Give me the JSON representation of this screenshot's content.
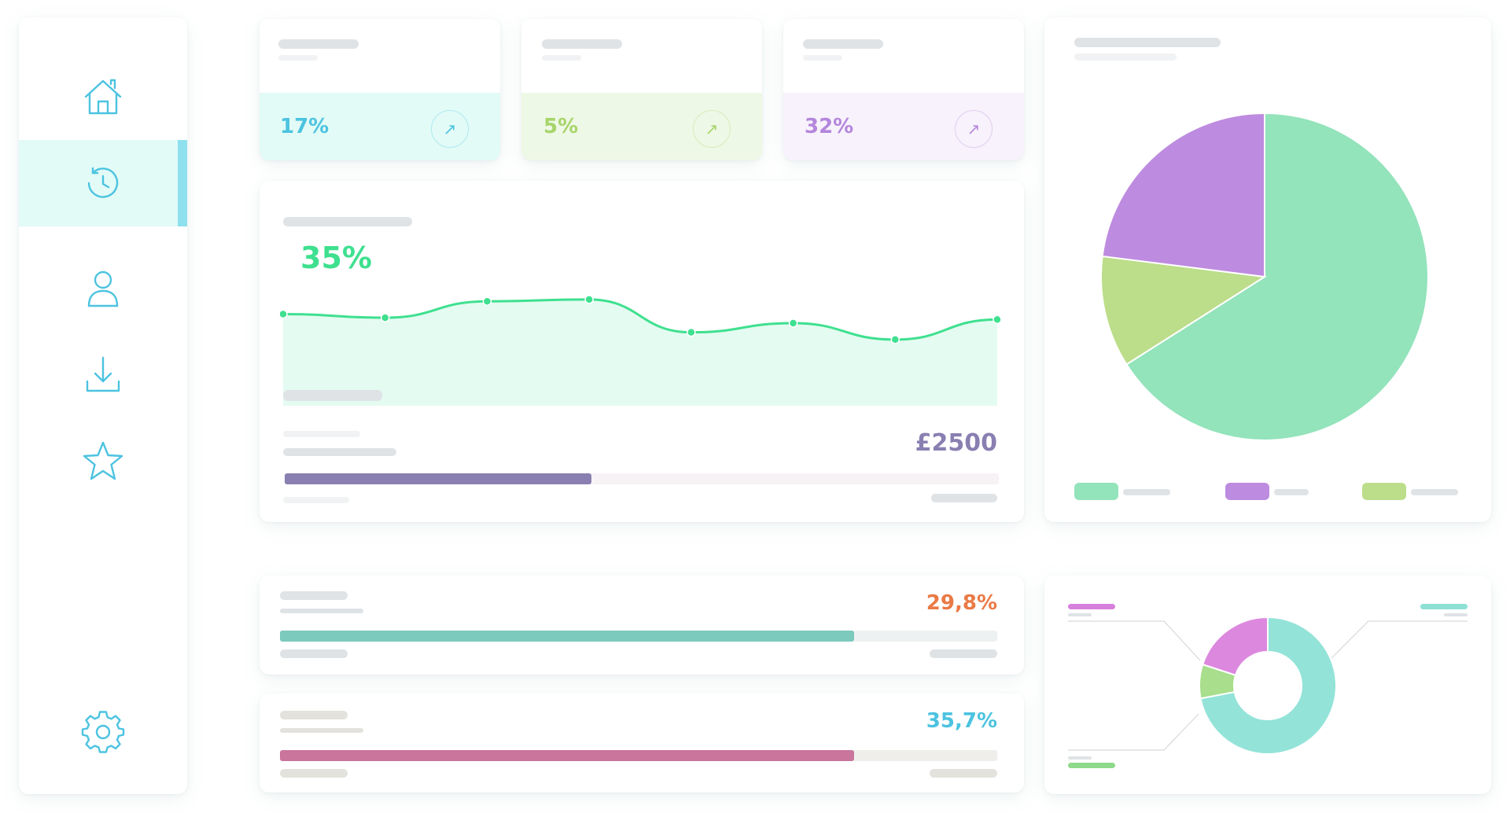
{
  "colors": {
    "accent_cyan": "#4cc3e0",
    "green": "#3ee08f",
    "lime": "#a7d56a",
    "purple": "#b486dc",
    "navy_purple": "#8a7fb1",
    "orange": "#ea7a45",
    "teal": "#7cc9bd",
    "pink": "#c9759c"
  },
  "sidebar": {
    "items": [
      {
        "icon": "home-icon",
        "active": false
      },
      {
        "icon": "history-icon",
        "active": true
      },
      {
        "icon": "user-icon",
        "active": false
      },
      {
        "icon": "download-icon",
        "active": false
      },
      {
        "icon": "star-icon",
        "active": false
      }
    ],
    "footer_icon": "gear-icon"
  },
  "stat_cards": [
    {
      "value": "17%",
      "icon": "arrow-up-right-icon",
      "color": "#4cc3e0",
      "tint": "#e2fbf7"
    },
    {
      "value": "5%",
      "icon": "arrow-up-right-icon",
      "color": "#a7d56a",
      "tint": "#eef8e6"
    },
    {
      "value": "32%",
      "icon": "arrow-up-right-icon",
      "color": "#b486dc",
      "tint": "#f7f2fb"
    }
  ],
  "line_card": {
    "value": "35%",
    "amount": "£2500",
    "amount_progress": 0.43
  },
  "chart_data": [
    {
      "type": "area",
      "x": [
        1,
        2,
        3,
        4,
        5,
        6,
        7,
        8
      ],
      "series": [
        {
          "values": [
            66,
            62,
            80,
            82,
            46,
            56,
            38,
            60
          ]
        }
      ],
      "ylim": [
        0,
        100
      ],
      "grid": false,
      "legend": "none"
    },
    {
      "type": "pie",
      "series": [
        {
          "values": [
            66,
            11,
            23
          ]
        }
      ],
      "colors": [
        "#93e3bb",
        "#bcdd8a",
        "#bd8bdf"
      ],
      "legend": "bottom"
    },
    {
      "type": "pie",
      "donut": true,
      "series": [
        {
          "values": [
            72,
            8,
            20
          ]
        }
      ],
      "colors": [
        "#93e3d8",
        "#a8de8c",
        "#dd88df"
      ]
    }
  ],
  "progress_rows": [
    {
      "value": "29,8%",
      "fraction": 0.8,
      "color": "#7cc9bd",
      "value_color": "#ea7a45"
    },
    {
      "value": "35,7%",
      "fraction": 0.8,
      "color": "#c9759c",
      "value_color": "#4cc3e0"
    }
  ]
}
